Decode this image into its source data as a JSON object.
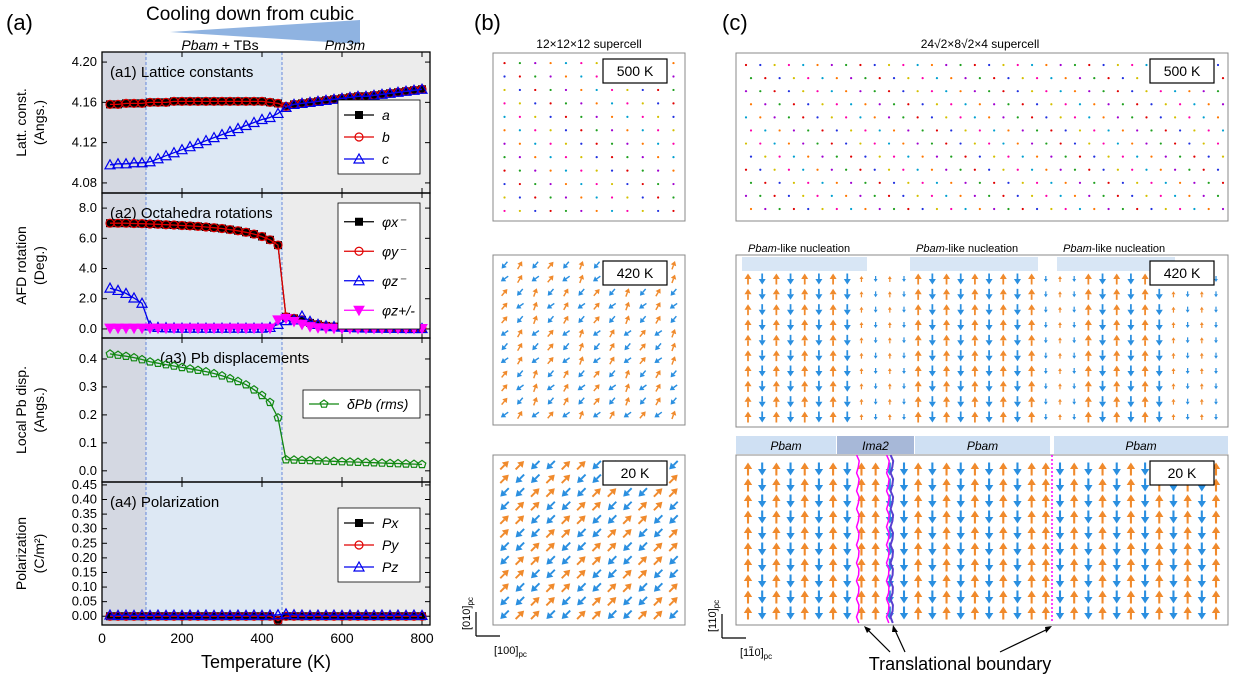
{
  "panel_a": {
    "label": "(a)",
    "header": {
      "arrow_label": "Cooling down from cubic",
      "phase_low": "Pbam",
      "phase_low_suffix": " + TBs",
      "phase_high": "Pm3m"
    },
    "xlabel": "Temperature (K)",
    "xticks": [
      0,
      200,
      400,
      600,
      800
    ],
    "xlim": [
      0,
      820
    ],
    "region_boundaries_K": [
      110,
      450
    ],
    "colors": {
      "dark_region": "#d4d8e2",
      "light_region": "#dde8f4",
      "high_region": "#ececec",
      "black": "#000000",
      "red": "#e00000",
      "blue": "#0000ee",
      "green": "#118811",
      "magenta": "#ff00ff"
    }
  },
  "chart_data": [
    {
      "type": "line",
      "id": "a1",
      "title": "(a1)  Lattice constants",
      "ylabel": "Latt. const.",
      "ylabel2": "(Angs.)",
      "ylim": [
        4.07,
        4.21
      ],
      "yticks": [
        "4.08",
        "4.12",
        "4.16",
        "4.20"
      ],
      "ytick_values": [
        4.08,
        4.12,
        4.16,
        4.2
      ],
      "x": [
        20,
        40,
        60,
        80,
        100,
        120,
        140,
        160,
        180,
        200,
        220,
        240,
        260,
        280,
        300,
        320,
        340,
        360,
        380,
        400,
        420,
        440,
        460,
        480,
        500,
        520,
        540,
        560,
        580,
        600,
        620,
        640,
        660,
        680,
        700,
        720,
        740,
        760,
        780,
        800
      ],
      "series": [
        {
          "name": "a",
          "color": "#000000",
          "marker": "square",
          "values": [
            4.158,
            4.158,
            4.159,
            4.159,
            4.159,
            4.16,
            4.16,
            4.16,
            4.161,
            4.161,
            4.161,
            4.161,
            4.161,
            4.161,
            4.161,
            4.161,
            4.161,
            4.161,
            4.161,
            4.161,
            4.16,
            4.159,
            4.156,
            4.158,
            4.159,
            4.16,
            4.161,
            4.162,
            4.163,
            4.164,
            4.165,
            4.166,
            4.166,
            4.167,
            4.168,
            4.169,
            4.17,
            4.171,
            4.172,
            4.173
          ]
        },
        {
          "name": "b",
          "color": "#e00000",
          "marker": "circle",
          "values": [
            4.158,
            4.158,
            4.159,
            4.159,
            4.159,
            4.16,
            4.16,
            4.16,
            4.161,
            4.161,
            4.161,
            4.161,
            4.161,
            4.161,
            4.161,
            4.161,
            4.161,
            4.161,
            4.161,
            4.161,
            4.16,
            4.159,
            4.156,
            4.158,
            4.159,
            4.16,
            4.161,
            4.162,
            4.163,
            4.164,
            4.165,
            4.166,
            4.166,
            4.167,
            4.168,
            4.169,
            4.17,
            4.171,
            4.172,
            4.173
          ]
        },
        {
          "name": "c",
          "color": "#0000ee",
          "marker": "triangle",
          "values": [
            4.098,
            4.099,
            4.099,
            4.1,
            4.1,
            4.101,
            4.104,
            4.107,
            4.11,
            4.113,
            4.116,
            4.119,
            4.122,
            4.125,
            4.128,
            4.131,
            4.134,
            4.137,
            4.14,
            4.143,
            4.145,
            4.149,
            4.155,
            4.158,
            4.159,
            4.16,
            4.161,
            4.162,
            4.163,
            4.164,
            4.165,
            4.166,
            4.166,
            4.167,
            4.168,
            4.169,
            4.17,
            4.171,
            4.172,
            4.173
          ]
        }
      ],
      "legend": "right"
    },
    {
      "type": "line",
      "id": "a2",
      "title": "(a2)  Octahedra rotations",
      "ylabel": "AFD rotation",
      "ylabel2": "(Deg.)",
      "ylim": [
        -0.6,
        9.0
      ],
      "yticks": [
        "0.0",
        "2.0",
        "4.0",
        "6.0",
        "8.0"
      ],
      "ytick_values": [
        0,
        2,
        4,
        6,
        8
      ],
      "x": [
        20,
        40,
        60,
        80,
        100,
        120,
        140,
        160,
        180,
        200,
        220,
        240,
        260,
        280,
        300,
        320,
        340,
        360,
        380,
        400,
        420,
        440,
        460,
        480,
        500,
        520,
        540,
        560,
        580,
        600,
        620,
        640,
        660,
        680,
        700,
        720,
        740,
        760,
        780,
        800
      ],
      "series": [
        {
          "name": "φx⁻",
          "color": "#000000",
          "marker": "square",
          "values": [
            7.0,
            7.0,
            7.0,
            6.98,
            6.97,
            6.95,
            6.93,
            6.9,
            6.88,
            6.85,
            6.82,
            6.79,
            6.75,
            6.7,
            6.65,
            6.58,
            6.5,
            6.4,
            6.28,
            6.12,
            5.9,
            5.55,
            0.8,
            0.7,
            0.6,
            0.4,
            0.3,
            0.2,
            0.15,
            0.12,
            0.1,
            0.08,
            0.06,
            0.05,
            0.05,
            0.04,
            0.04,
            0.03,
            0.03,
            0.03
          ]
        },
        {
          "name": "φy⁻",
          "color": "#e00000",
          "marker": "circle",
          "values": [
            7.0,
            7.0,
            7.0,
            6.98,
            6.97,
            6.95,
            6.93,
            6.9,
            6.88,
            6.85,
            6.82,
            6.79,
            6.75,
            6.7,
            6.65,
            6.58,
            6.5,
            6.4,
            6.28,
            6.12,
            5.9,
            5.55,
            0.8,
            0.7,
            0.6,
            0.4,
            0.3,
            0.2,
            0.15,
            0.12,
            0.1,
            0.08,
            0.06,
            0.05,
            0.05,
            0.04,
            0.04,
            0.03,
            0.03,
            0.03
          ]
        },
        {
          "name": "φz⁻",
          "color": "#0000ee",
          "marker": "triangle",
          "values": [
            2.7,
            2.55,
            2.35,
            2.05,
            1.7,
            0.2,
            0.1,
            0.08,
            0.06,
            0.05,
            0.05,
            0.05,
            0.05,
            0.05,
            0.05,
            0.05,
            0.05,
            0.05,
            0.05,
            0.05,
            0.1,
            0.3,
            0.55,
            0.6,
            0.85,
            0.5,
            0.3,
            0.2,
            0.15,
            0.12,
            0.1,
            0.08,
            0.06,
            0.05,
            0.05,
            0.04,
            0.04,
            0.03,
            0.03,
            0.03
          ]
        },
        {
          "name": "φz+/-",
          "color": "#ff00ff",
          "marker": "triangle-down",
          "values": [
            0.05,
            0.05,
            0.05,
            0.05,
            0.05,
            0.05,
            0.05,
            0.05,
            0.05,
            0.05,
            0.05,
            0.05,
            0.05,
            0.05,
            0.05,
            0.05,
            0.05,
            0.05,
            0.05,
            0.05,
            0.05,
            0.6,
            0.7,
            0.5,
            0.3,
            0.15,
            0.08,
            0.05,
            0.04,
            0.04,
            0.03,
            0.03,
            0.03,
            0.03,
            0.03,
            0.03,
            0.03,
            0.03,
            0.03,
            0.03
          ]
        }
      ],
      "legend": "right"
    },
    {
      "type": "line",
      "id": "a3",
      "title": "(a3) Pb displacements",
      "ylabel": "Local Pb disp.",
      "ylabel2": "(Angs.)",
      "ylim": [
        -0.04,
        0.475
      ],
      "yticks": [
        "0.0",
        "0.1",
        "0.2",
        "0.3",
        "0.4"
      ],
      "ytick_values": [
        0.0,
        0.1,
        0.2,
        0.3,
        0.4
      ],
      "x": [
        20,
        40,
        60,
        80,
        100,
        120,
        140,
        160,
        180,
        200,
        220,
        240,
        260,
        280,
        300,
        320,
        340,
        360,
        380,
        400,
        420,
        440,
        460,
        480,
        500,
        520,
        540,
        560,
        580,
        600,
        620,
        640,
        660,
        680,
        700,
        720,
        740,
        760,
        780,
        800
      ],
      "series": [
        {
          "name": "δPb (rms)",
          "color": "#118811",
          "marker": "pentagon",
          "values": [
            0.418,
            0.414,
            0.41,
            0.405,
            0.398,
            0.39,
            0.385,
            0.38,
            0.375,
            0.37,
            0.365,
            0.36,
            0.355,
            0.348,
            0.34,
            0.33,
            0.32,
            0.308,
            0.29,
            0.27,
            0.245,
            0.19,
            0.04,
            0.039,
            0.038,
            0.037,
            0.036,
            0.035,
            0.034,
            0.033,
            0.032,
            0.031,
            0.03,
            0.029,
            0.028,
            0.027,
            0.026,
            0.025,
            0.024,
            0.023
          ]
        }
      ],
      "legend": "right"
    },
    {
      "type": "line",
      "id": "a4",
      "title": "(a4)  Polarization",
      "ylabel": "Polarization",
      "ylabel2": "(C/m²)",
      "ylim": [
        -0.03,
        0.46
      ],
      "yticks": [
        "0.00",
        "0.05",
        "0.10",
        "0.15",
        "0.20",
        "0.25",
        "0.30",
        "0.35",
        "0.40",
        "0.45"
      ],
      "ytick_values": [
        0,
        0.05,
        0.1,
        0.15,
        0.2,
        0.25,
        0.3,
        0.35,
        0.4,
        0.45
      ],
      "x": [
        20,
        40,
        60,
        80,
        100,
        120,
        140,
        160,
        180,
        200,
        220,
        240,
        260,
        280,
        300,
        320,
        340,
        360,
        380,
        400,
        420,
        440,
        460,
        480,
        500,
        520,
        540,
        560,
        580,
        600,
        620,
        640,
        660,
        680,
        700,
        720,
        740,
        760,
        780,
        800
      ],
      "series": [
        {
          "name": "Px",
          "color": "#000000",
          "marker": "square",
          "values": [
            0,
            0,
            0,
            0,
            0,
            0,
            0,
            0,
            0,
            0,
            0,
            0,
            0,
            0,
            0,
            0,
            0,
            0,
            0,
            0,
            0,
            -0.012,
            0,
            0,
            0,
            0,
            0,
            0,
            0,
            0,
            0,
            0,
            0,
            0,
            0,
            0,
            0,
            0,
            0,
            0
          ]
        },
        {
          "name": "Py",
          "color": "#e00000",
          "marker": "circle",
          "values": [
            0,
            0,
            0,
            0,
            0,
            0,
            0,
            0,
            0,
            0,
            0,
            0,
            0,
            0,
            0,
            0,
            0,
            0,
            0,
            0,
            0,
            -0.015,
            0,
            0,
            0,
            0,
            0,
            0,
            0,
            0,
            0,
            0,
            0,
            0,
            0,
            0,
            0,
            0,
            0,
            0
          ]
        },
        {
          "name": "Pz",
          "color": "#0000ee",
          "marker": "triangle",
          "values": [
            0.004,
            0.003,
            0.004,
            0.003,
            0.004,
            0.003,
            0.004,
            0.003,
            0.004,
            0.003,
            0.004,
            0.003,
            0.004,
            0.003,
            0.004,
            0.003,
            0.004,
            0.003,
            0.004,
            0.003,
            0.004,
            0.005,
            0.008,
            0.005,
            0.004,
            0.003,
            0.004,
            0.003,
            0.004,
            0.003,
            0.004,
            0.003,
            0.004,
            0.003,
            0.004,
            0.003,
            0.004,
            0.003,
            0.004,
            0.003
          ]
        }
      ],
      "legend": "right"
    }
  ],
  "panel_b": {
    "label": "(b)",
    "supercell": "12×12×12 supercell",
    "temps": [
      "500 K",
      "420 K",
      "20 K"
    ],
    "axis_y": "[010]",
    "axis_x": "[100]",
    "axis_sub": "pc",
    "colors": {
      "orange": "#f08a2c",
      "blue": "#2a8fe0"
    }
  },
  "panel_c": {
    "label": "(c)",
    "supercell": "24√2×8√2×4 supercell",
    "temps": [
      "500 K",
      "420 K",
      "20 K"
    ],
    "nucleation_label": "Pbam",
    "nucleation_suffix": "-like nucleation",
    "phase_labels": [
      "Pbam",
      "Ima2",
      "Pbam",
      "Pbam"
    ],
    "axis_y": "[110]",
    "axis_x": "[110]",
    "axis_sub": "pc",
    "boundary_label": "Translational boundary",
    "colors": {
      "orange": "#f08a2c",
      "blue": "#2a8fe0",
      "boundary": "#ff00ff",
      "boundary_alt": "#5a3fd0"
    }
  }
}
